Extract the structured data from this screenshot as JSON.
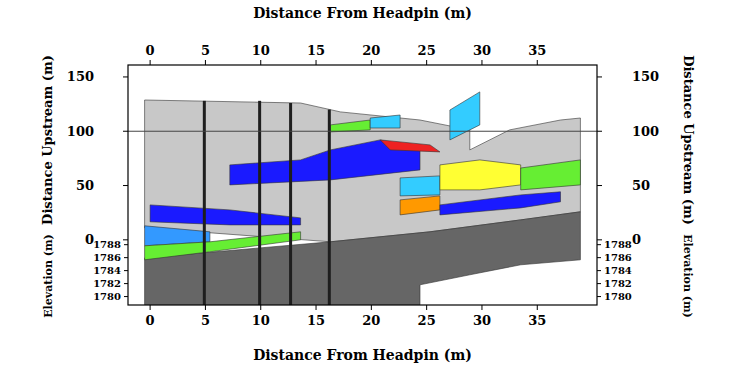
{
  "chart_data": {
    "type": "cross_section",
    "x_label": "Distance From Headpin (m)",
    "y_label": "Distance Upstream (m)",
    "y2_label": "Elevation (m)",
    "xlim": [
      -2,
      40.4
    ],
    "xticks": [
      0,
      5,
      10,
      15,
      20,
      25,
      30,
      35
    ],
    "ylim": [
      -60,
      161
    ],
    "yticks": [
      0,
      50,
      100,
      150
    ],
    "y2lim": [
      1778.7,
      1815.7
    ],
    "y2ticks": [
      1780,
      1782,
      1784,
      1786,
      1788
    ],
    "reference_line": 100,
    "posts": [
      {
        "x": 4.9,
        "top": 128
      },
      {
        "x": 9.9,
        "top": 128
      },
      {
        "x": 12.7,
        "top": 126
      },
      {
        "x": 16.2,
        "top": 120
      }
    ],
    "units": [
      {
        "color": "#c8c8c8",
        "x": [
          -0.5,
          13.6,
          17.2,
          24.4,
          28.9,
          28.9,
          32.5,
          37.1,
          38.9,
          38.9,
          33.5,
          25.3,
          16.3,
          -0.5
        ],
        "y": [
          128.8,
          126.0,
          117.8,
          110.4,
          101.2,
          82.8,
          101.2,
          110.4,
          112.2,
          25.8,
          18.4,
          7.4,
          -1.8,
          11.0
        ]
      },
      {
        "color": "#666666",
        "x": [
          -0.5,
          16.3,
          25.3,
          33.5,
          38.9,
          38.9,
          33.5,
          28.9,
          24.4,
          24.4,
          -0.5
        ],
        "y": [
          -16.6,
          -1.8,
          7.4,
          18.4,
          25.8,
          -18.4,
          -23.0,
          -32.2,
          -41.4,
          -59.8,
          -59.8
        ]
      },
      {
        "color": "#1a1aff",
        "x": [
          7.2,
          13.6,
          16.3,
          20.8,
          24.4,
          24.4,
          16.3,
          7.2
        ],
        "y": [
          69.0,
          73.6,
          82.8,
          92.0,
          82.8,
          64.4,
          55.2,
          50.6
        ]
      },
      {
        "color": "#1a1aff",
        "x": [
          0.0,
          7.2,
          13.6,
          13.6,
          7.2,
          0.0
        ],
        "y": [
          32.2,
          27.6,
          20.2,
          13.8,
          13.8,
          16.6
        ]
      },
      {
        "color": "#3399ff",
        "x": [
          -0.5,
          5.4,
          5.4,
          -0.5
        ],
        "y": [
          12.9,
          7.4,
          -1.8,
          -5.5
        ]
      },
      {
        "color": "#66ee33",
        "x": [
          -0.5,
          5.4,
          13.6,
          13.6,
          5.4,
          -0.5
        ],
        "y": [
          -5.5,
          -1.8,
          7.4,
          0.0,
          -11.0,
          -18.4
        ]
      },
      {
        "color": "#33ccff",
        "x": [
          22.6,
          26.2,
          26.2,
          22.6
        ],
        "y": [
          57.0,
          58.9,
          41.4,
          40.5
        ]
      },
      {
        "color": "#33ccff",
        "x": [
          27.1,
          29.8,
          29.8,
          27.1
        ],
        "y": [
          119.6,
          136.2,
          105.8,
          92.0
        ]
      },
      {
        "color": "#ffff33",
        "x": [
          26.2,
          29.8,
          33.5,
          33.5,
          29.8,
          26.2
        ],
        "y": [
          69.0,
          73.6,
          69.0,
          50.6,
          46.0,
          46.0
        ]
      },
      {
        "color": "#ff9900",
        "x": [
          22.6,
          26.2,
          26.2,
          22.6
        ],
        "y": [
          36.8,
          40.5,
          27.6,
          23.0
        ]
      },
      {
        "color": "#1a1aff",
        "x": [
          26.2,
          33.5,
          37.1,
          37.1,
          33.5,
          26.2
        ],
        "y": [
          32.2,
          41.4,
          44.2,
          35.0,
          29.4,
          23.0
        ]
      },
      {
        "color": "#66ee33",
        "x": [
          33.5,
          38.9,
          38.9,
          33.5
        ],
        "y": [
          66.2,
          73.6,
          50.6,
          46.0
        ]
      },
      {
        "color": "#ee2222",
        "x": [
          20.8,
          25.3,
          26.2,
          21.7
        ],
        "y": [
          92.0,
          87.4,
          81.0,
          82.8
        ]
      },
      {
        "color": "#66ee33",
        "x": [
          16.3,
          19.9,
          19.9,
          16.3
        ],
        "y": [
          105.8,
          110.4,
          101.2,
          99.4
        ]
      },
      {
        "color": "#33ccff",
        "x": [
          19.9,
          22.6,
          22.6,
          19.9
        ],
        "y": [
          112.2,
          115.0,
          103.0,
          103.0
        ]
      }
    ]
  }
}
